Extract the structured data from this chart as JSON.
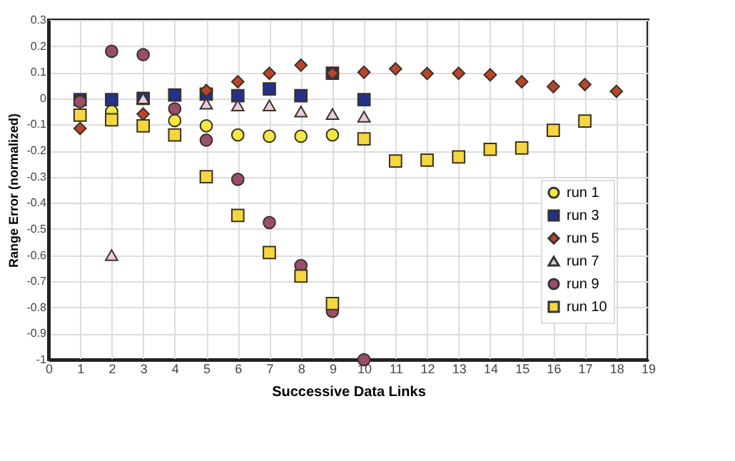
{
  "chart_data": {
    "type": "scatter",
    "xlabel": "Successive Data Links",
    "ylabel": "Range Error (normalized)",
    "xlim": [
      0,
      19
    ],
    "xticks": [
      0,
      1,
      2,
      3,
      4,
      5,
      6,
      7,
      8,
      9,
      10,
      11,
      12,
      13,
      14,
      15,
      16,
      17,
      18,
      19
    ],
    "ylim": [
      -1,
      0.3
    ],
    "yticks": [
      -1,
      -0.9,
      -0.8,
      -0.7,
      -0.6,
      -0.5,
      -0.4,
      -0.3,
      -0.2,
      -0.1,
      0,
      0.1,
      0.2,
      0.3
    ],
    "grid": true,
    "legend": "right",
    "series": [
      {
        "name": "run 1",
        "color": "#f2e844",
        "marker": "circle",
        "x": [
          2,
          4,
          5,
          6,
          7,
          8,
          9
        ],
        "values": [
          -0.05,
          -0.085,
          -0.105,
          -0.14,
          -0.145,
          -0.145,
          -0.14
        ]
      },
      {
        "name": "run 3",
        "color": "#23318a",
        "marker": "square",
        "x": [
          1,
          2,
          3,
          4,
          5,
          6,
          7,
          8,
          9,
          10
        ],
        "values": [
          -0.005,
          -0.005,
          0,
          0.013,
          0.016,
          0.01,
          0.036,
          0.01,
          0.096,
          -0.005
        ]
      },
      {
        "name": "run 5",
        "color": "#b8452f",
        "marker": "diamond",
        "x": [
          1,
          3,
          5,
          6,
          7,
          8,
          9,
          10,
          11,
          12,
          13,
          14,
          15,
          16,
          17,
          18
        ],
        "values": [
          -0.115,
          -0.06,
          0.03,
          0.064,
          0.096,
          0.127,
          0.096,
          0.1,
          0.113,
          0.095,
          0.096,
          0.09,
          0.064,
          0.045,
          0.053,
          0.027
        ]
      },
      {
        "name": "run 7",
        "color": "#e8cbe0",
        "marker": "triangle",
        "x": [
          2,
          3,
          5,
          6,
          7,
          8,
          9,
          10
        ],
        "values": [
          -0.6,
          0,
          -0.02,
          -0.027,
          -0.027,
          -0.05,
          -0.06,
          -0.07
        ]
      },
      {
        "name": "run 9",
        "color": "#9a4d6c",
        "marker": "circle",
        "x": [
          1,
          2,
          3,
          4,
          5,
          6,
          7,
          8,
          9,
          10
        ],
        "values": [
          -0.013,
          0.18,
          0.167,
          -0.04,
          -0.16,
          -0.31,
          -0.475,
          -0.64,
          -0.815,
          -1
        ]
      },
      {
        "name": "run 10",
        "color": "#f5d63e",
        "marker": "square",
        "x": [
          1,
          2,
          3,
          4,
          5,
          6,
          7,
          8,
          9,
          10,
          11,
          12,
          13,
          14,
          15,
          16,
          17
        ],
        "values": [
          -0.064,
          -0.082,
          -0.105,
          -0.14,
          -0.3,
          -0.448,
          -0.59,
          -0.68,
          -0.785,
          -0.155,
          -0.24,
          -0.236,
          -0.224,
          -0.195,
          -0.19,
          -0.122,
          -0.087
        ]
      }
    ]
  }
}
